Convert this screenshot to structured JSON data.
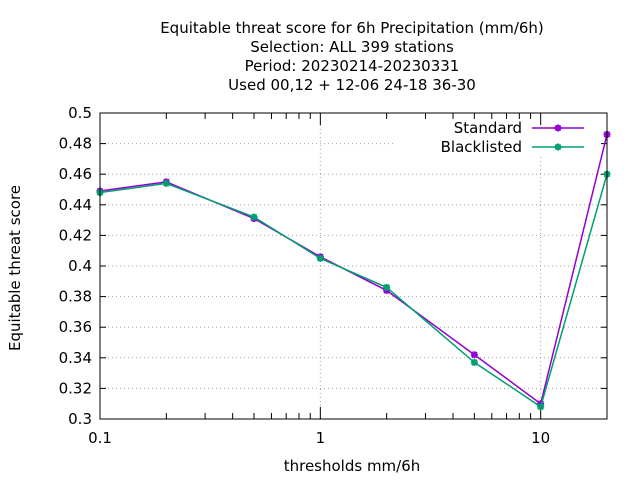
{
  "chart_data": {
    "type": "line",
    "title_lines": [
      "Equitable threat score  for 6h Precipitation (mm/6h)",
      "Selection: ALL    399 stations",
      "Period: 20230214-20230331",
      "Used  00,12  + 12-06 24-18 36-30"
    ],
    "xlabel": "thresholds mm/6h",
    "ylabel": "Equitable threat score",
    "x_scale": "log",
    "xlim": [
      0.1,
      20
    ],
    "ylim": [
      0.3,
      0.5
    ],
    "x_ticks": [
      0.1,
      1,
      10
    ],
    "x_tick_labels": [
      "0.1",
      "1",
      "10"
    ],
    "x_minor_ticks": [
      0.2,
      0.5,
      2,
      5,
      20
    ],
    "y_ticks": [
      0.3,
      0.32,
      0.34,
      0.36,
      0.38,
      0.4,
      0.42,
      0.44,
      0.46,
      0.48,
      0.5
    ],
    "y_tick_labels": [
      "0.3",
      "0.32",
      "0.34",
      "0.36",
      "0.38",
      "0.4",
      "0.42",
      "0.44",
      "0.46",
      "0.48",
      "0.5"
    ],
    "grid": true,
    "legend_position": "top-right",
    "series": [
      {
        "name": "Standard",
        "color": "#9400d3",
        "x": [
          0.1,
          0.2,
          0.5,
          1,
          2,
          5,
          10,
          20
        ],
        "y": [
          0.449,
          0.455,
          0.431,
          0.406,
          0.384,
          0.342,
          0.31,
          0.486
        ]
      },
      {
        "name": "Blacklisted",
        "color": "#009e73",
        "x": [
          0.1,
          0.2,
          0.5,
          1,
          2,
          5,
          10,
          20
        ],
        "y": [
          0.448,
          0.454,
          0.432,
          0.405,
          0.386,
          0.337,
          0.308,
          0.46
        ]
      }
    ]
  }
}
